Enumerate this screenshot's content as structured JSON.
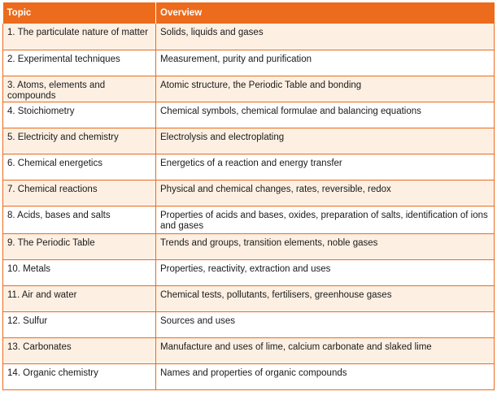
{
  "table": {
    "headers": [
      "Topic",
      "Overview"
    ],
    "rows": [
      [
        "1. The particulate nature of matter",
        "Solids, liquids and gases"
      ],
      [
        "2. Experimental techniques",
        "Measurement, purity and purification"
      ],
      [
        "3. Atoms, elements and compounds",
        "Atomic structure, the Periodic Table and bonding"
      ],
      [
        "4. Stoichiometry",
        "Chemical symbols, chemical formulae and balancing equations"
      ],
      [
        "5. Electricity and chemistry",
        "Electrolysis and electroplating"
      ],
      [
        "6. Chemical energetics",
        "Energetics of a reaction and energy transfer"
      ],
      [
        "7. Chemical reactions",
        "Physical and chemical changes, rates, reversible, redox"
      ],
      [
        "8. Acids, bases and salts",
        "Properties of acids and bases, oxides, preparation of salts, identification of ions and gases"
      ],
      [
        "9. The Periodic Table",
        "Trends and groups, transition elements, noble gases"
      ],
      [
        "10. Metals",
        "Properties, reactivity, extraction and uses"
      ],
      [
        "11. Air and water",
        "Chemical tests, pollutants, fertilisers, greenhouse gases"
      ],
      [
        "12. Sulfur",
        "Sources and uses"
      ],
      [
        "13. Carbonates",
        "Manufacture and uses of lime, calcium carbonate and slaked lime"
      ],
      [
        "14. Organic chemistry",
        "Names and properties of organic compounds"
      ]
    ]
  },
  "colors": {
    "header_background": "#ec6b1c",
    "odd_row_background": "#fdf0e3",
    "even_row_background": "#ffffff",
    "border": "#ec6b1c"
  }
}
